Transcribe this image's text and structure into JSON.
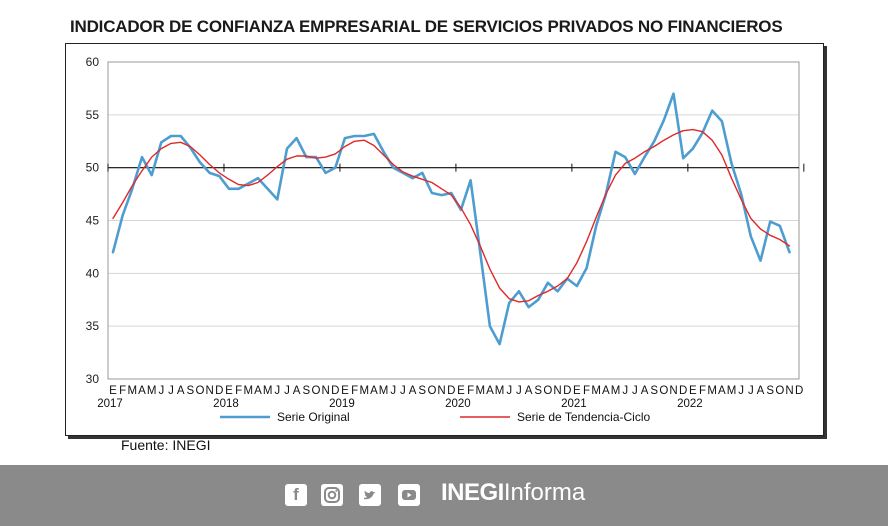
{
  "title": "INDICADOR DE CONFIANZA EMPRESARIAL DE SERVICIOS PRIVADOS NO FINANCIEROS",
  "source": "Fuente: INEGI",
  "brand": {
    "bold": "INEGI",
    "light": "Informa"
  },
  "icons": [
    "facebook-icon",
    "instagram-icon",
    "twitter-icon",
    "youtube-icon"
  ],
  "colors": {
    "original": "#4e9dd1",
    "trend": "#e02828",
    "footer": "#8a8a8a"
  },
  "chart_data": {
    "type": "line",
    "title": "INDICADOR DE CONFIANZA EMPRESARIAL DE SERVICIOS PRIVADOS NO FINANCIEROS",
    "ylim": [
      30,
      60
    ],
    "yticks": [
      30,
      35,
      40,
      45,
      50,
      55,
      60
    ],
    "reference_line": 50,
    "month_letters": [
      "E",
      "F",
      "M",
      "A",
      "M",
      "J",
      "J",
      "A",
      "S",
      "O",
      "N",
      "D"
    ],
    "years": [
      "2017",
      "2018",
      "2019",
      "2020",
      "2021",
      "2022"
    ],
    "legend_position": "bottom",
    "grid": true,
    "series": [
      {
        "name": "Serie Original",
        "values": [
          42.0,
          45.5,
          48.0,
          51.0,
          49.3,
          52.4,
          53.0,
          53.0,
          51.9,
          50.5,
          49.5,
          49.2,
          48.0,
          48.0,
          48.5,
          49.0,
          48.0,
          47.0,
          51.8,
          52.8,
          51.0,
          51.0,
          49.5,
          50.0,
          52.8,
          53.0,
          53.0,
          53.2,
          51.5,
          50.0,
          49.5,
          49.0,
          49.5,
          47.6,
          47.4,
          47.6,
          46.0,
          48.8,
          42.0,
          35.0,
          33.3,
          37.2,
          38.3,
          36.8,
          37.5,
          39.1,
          38.3,
          39.5,
          38.8,
          40.5,
          44.5,
          47.5,
          51.5,
          51.0,
          49.4,
          51.0,
          52.5,
          54.5,
          57.0,
          50.9,
          51.8,
          53.3,
          55.4,
          54.4,
          50.4,
          47.5,
          43.5,
          41.2,
          44.9,
          44.5,
          42.0
        ]
      },
      {
        "name": "Serie de Tendencia-Ciclo",
        "values": [
          45.2,
          46.7,
          48.3,
          49.7,
          51.0,
          51.8,
          52.3,
          52.4,
          52.0,
          51.2,
          50.3,
          49.5,
          48.9,
          48.4,
          48.3,
          48.6,
          49.3,
          50.1,
          50.8,
          51.1,
          51.1,
          50.9,
          51.0,
          51.3,
          52.0,
          52.5,
          52.6,
          52.1,
          51.2,
          50.3,
          49.6,
          49.2,
          48.9,
          48.6,
          48.0,
          47.4,
          46.2,
          44.6,
          42.6,
          40.4,
          38.6,
          37.6,
          37.3,
          37.4,
          37.9,
          38.3,
          38.8,
          39.5,
          41.0,
          43.0,
          45.3,
          47.5,
          49.3,
          50.4,
          50.9,
          51.5,
          52.0,
          52.6,
          53.1,
          53.5,
          53.6,
          53.4,
          52.6,
          51.2,
          49.0,
          47.0,
          45.2,
          44.2,
          43.6,
          43.2,
          42.6
        ]
      }
    ]
  }
}
